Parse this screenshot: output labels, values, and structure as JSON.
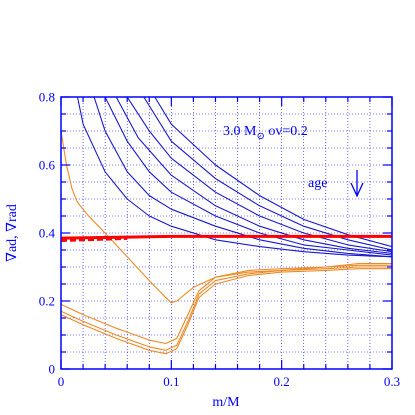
{
  "colors": {
    "axis": "#0000ff",
    "grid": "#0000ff",
    "blue_series": "#1a1acc",
    "orange_series": "#ee8a22",
    "red_series": "#ff0000"
  },
  "chart_data": {
    "type": "line",
    "title": "",
    "xlabel": "m/M",
    "ylabel": "∇ad, ∇rad",
    "xlim": [
      0,
      0.3
    ],
    "ylim": [
      0,
      0.8
    ],
    "xticks": [
      0,
      0.1,
      0.2,
      0.3
    ],
    "yticks": [
      0,
      0.2,
      0.4,
      0.6,
      0.8
    ],
    "xtick_labels": [
      "0",
      "0.1",
      "0.2",
      "0.3"
    ],
    "ytick_labels": [
      "0",
      "0.2",
      "0.4",
      "0.6",
      "0.8"
    ],
    "grid": true,
    "annotations": {
      "model": "3.0 M",
      "model_sub": "⊙",
      "overshoot": " ov=0.2",
      "age": "age"
    },
    "series": [
      {
        "color_key": "blue_series",
        "points": [
          [
            0.015,
            0.8
          ],
          [
            0.02,
            0.72
          ],
          [
            0.04,
            0.58
          ],
          [
            0.06,
            0.5
          ],
          [
            0.08,
            0.45
          ],
          [
            0.1,
            0.42
          ],
          [
            0.14,
            0.38
          ],
          [
            0.18,
            0.36
          ],
          [
            0.22,
            0.345
          ],
          [
            0.26,
            0.335
          ],
          [
            0.3,
            0.33
          ]
        ]
      },
      {
        "color_key": "blue_series",
        "points": [
          [
            0.03,
            0.8
          ],
          [
            0.04,
            0.7
          ],
          [
            0.06,
            0.58
          ],
          [
            0.08,
            0.51
          ],
          [
            0.1,
            0.47
          ],
          [
            0.14,
            0.42
          ],
          [
            0.18,
            0.38
          ],
          [
            0.22,
            0.355
          ],
          [
            0.26,
            0.34
          ],
          [
            0.3,
            0.33
          ]
        ]
      },
      {
        "color_key": "blue_series",
        "points": [
          [
            0.04,
            0.8
          ],
          [
            0.06,
            0.67
          ],
          [
            0.08,
            0.58
          ],
          [
            0.1,
            0.52
          ],
          [
            0.14,
            0.45
          ],
          [
            0.18,
            0.4
          ],
          [
            0.22,
            0.365
          ],
          [
            0.26,
            0.35
          ],
          [
            0.3,
            0.335
          ]
        ]
      },
      {
        "color_key": "blue_series",
        "points": [
          [
            0.05,
            0.8
          ],
          [
            0.07,
            0.68
          ],
          [
            0.1,
            0.57
          ],
          [
            0.14,
            0.48
          ],
          [
            0.18,
            0.42
          ],
          [
            0.22,
            0.38
          ],
          [
            0.26,
            0.355
          ],
          [
            0.3,
            0.34
          ]
        ]
      },
      {
        "color_key": "blue_series",
        "points": [
          [
            0.06,
            0.8
          ],
          [
            0.08,
            0.7
          ],
          [
            0.1,
            0.62
          ],
          [
            0.14,
            0.52
          ],
          [
            0.18,
            0.45
          ],
          [
            0.22,
            0.4
          ],
          [
            0.26,
            0.365
          ],
          [
            0.3,
            0.345
          ]
        ]
      },
      {
        "color_key": "blue_series",
        "points": [
          [
            0.075,
            0.8
          ],
          [
            0.1,
            0.67
          ],
          [
            0.14,
            0.56
          ],
          [
            0.18,
            0.48
          ],
          [
            0.22,
            0.42
          ],
          [
            0.26,
            0.38
          ],
          [
            0.3,
            0.35
          ]
        ]
      },
      {
        "color_key": "blue_series",
        "points": [
          [
            0.085,
            0.8
          ],
          [
            0.1,
            0.72
          ],
          [
            0.14,
            0.6
          ],
          [
            0.18,
            0.51
          ],
          [
            0.22,
            0.44
          ],
          [
            0.26,
            0.395
          ],
          [
            0.3,
            0.36
          ]
        ]
      },
      {
        "color_key": "orange_series",
        "points": [
          [
            0.0,
            0.7
          ],
          [
            0.005,
            0.6
          ],
          [
            0.01,
            0.53
          ],
          [
            0.015,
            0.49
          ],
          [
            0.025,
            0.45
          ],
          [
            0.04,
            0.4
          ],
          [
            0.06,
            0.33
          ],
          [
            0.08,
            0.26
          ],
          [
            0.095,
            0.21
          ],
          [
            0.1,
            0.195
          ],
          [
            0.105,
            0.2
          ],
          [
            0.12,
            0.24
          ],
          [
            0.14,
            0.27
          ],
          [
            0.17,
            0.285
          ],
          [
            0.2,
            0.29
          ],
          [
            0.24,
            0.3
          ],
          [
            0.27,
            0.31
          ],
          [
            0.3,
            0.31
          ]
        ]
      },
      {
        "color_key": "orange_series",
        "points": [
          [
            0.0,
            0.19
          ],
          [
            0.02,
            0.16
          ],
          [
            0.05,
            0.12
          ],
          [
            0.08,
            0.085
          ],
          [
            0.095,
            0.075
          ],
          [
            0.105,
            0.09
          ],
          [
            0.115,
            0.16
          ],
          [
            0.125,
            0.23
          ],
          [
            0.14,
            0.27
          ],
          [
            0.17,
            0.29
          ],
          [
            0.2,
            0.295
          ],
          [
            0.24,
            0.3
          ],
          [
            0.27,
            0.305
          ],
          [
            0.3,
            0.305
          ]
        ]
      },
      {
        "color_key": "orange_series",
        "points": [
          [
            0.0,
            0.17
          ],
          [
            0.02,
            0.14
          ],
          [
            0.05,
            0.1
          ],
          [
            0.08,
            0.065
          ],
          [
            0.095,
            0.055
          ],
          [
            0.105,
            0.07
          ],
          [
            0.115,
            0.14
          ],
          [
            0.125,
            0.22
          ],
          [
            0.14,
            0.26
          ],
          [
            0.17,
            0.28
          ],
          [
            0.2,
            0.29
          ],
          [
            0.24,
            0.295
          ],
          [
            0.27,
            0.3
          ],
          [
            0.3,
            0.3
          ]
        ]
      },
      {
        "color_key": "orange_series",
        "points": [
          [
            0.0,
            0.16
          ],
          [
            0.02,
            0.13
          ],
          [
            0.05,
            0.09
          ],
          [
            0.08,
            0.055
          ],
          [
            0.095,
            0.045
          ],
          [
            0.105,
            0.06
          ],
          [
            0.115,
            0.13
          ],
          [
            0.125,
            0.21
          ],
          [
            0.14,
            0.25
          ],
          [
            0.17,
            0.275
          ],
          [
            0.2,
            0.285
          ],
          [
            0.24,
            0.29
          ],
          [
            0.27,
            0.295
          ],
          [
            0.3,
            0.295
          ]
        ]
      },
      {
        "color_key": "red_series",
        "width": 3,
        "points": [
          [
            0.0,
            0.385
          ],
          [
            0.06,
            0.388
          ],
          [
            0.1,
            0.39
          ],
          [
            0.2,
            0.39
          ],
          [
            0.3,
            0.39
          ]
        ]
      },
      {
        "color_key": "red_series",
        "width": 3,
        "dash": "6,3",
        "points": [
          [
            0.0,
            0.378
          ],
          [
            0.02,
            0.38
          ],
          [
            0.04,
            0.382
          ],
          [
            0.06,
            0.384
          ]
        ]
      }
    ]
  }
}
